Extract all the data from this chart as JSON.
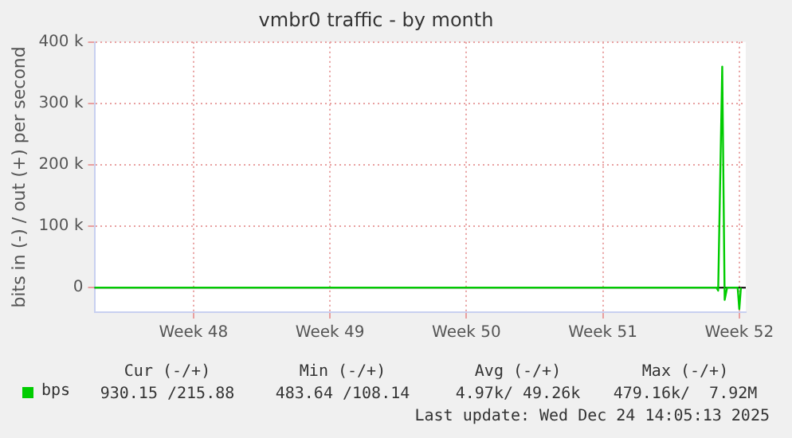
{
  "chart_data": {
    "type": "line",
    "title": "vmbr0 traffic - by month",
    "ylabel": "bits in (-) / out (+) per second",
    "x": [
      "2025-11-21T10:00",
      "2025-12-23T08:00",
      "2025-12-23T10:00",
      "2025-12-23T15:00",
      "2025-12-23T18:00",
      "2025-12-23T21:00",
      "2025-12-24T10:00",
      "2025-12-24T12:00",
      "2025-12-24T14:00"
    ],
    "series": [
      {
        "name": "bps",
        "color": "#00cc00",
        "values": [
          0,
          0,
          -5000,
          360000,
          -20000,
          0,
          0,
          -35000,
          0
        ]
      }
    ],
    "xlim": [
      "2025-11-21T10:00",
      "2025-12-24T20:00"
    ],
    "xticks": [
      {
        "value": "2025-11-26T12:00",
        "label": "Week 48"
      },
      {
        "value": "2025-12-03T12:00",
        "label": "Week 49"
      },
      {
        "value": "2025-12-10T12:00",
        "label": "Week 50"
      },
      {
        "value": "2025-12-17T12:00",
        "label": "Week 51"
      },
      {
        "value": "2025-12-24T12:00",
        "label": "Week 52"
      }
    ],
    "ylim": [
      -40000,
      400000
    ],
    "yticks": [
      {
        "value": 0,
        "label": "0"
      },
      {
        "value": 100000,
        "label": "100 k"
      },
      {
        "value": 200000,
        "label": "200 k"
      },
      {
        "value": 300000,
        "label": "300 k"
      },
      {
        "value": 400000,
        "label": "400 k"
      }
    ],
    "ref_lines": [
      {
        "axis": "y",
        "value": 0,
        "color": "#000000"
      }
    ],
    "grid": true,
    "legend": "bottom",
    "marker": "none",
    "line_style": "solid",
    "annotations": [
      "Cur (-/+)",
      "Min (-/+)",
      "Avg (-/+)",
      "Max (-/+)",
      "930.15 /215.88",
      "483.64 /108.14",
      "4.97k/ 49.26k",
      "479.16k/  7.92M",
      "Last update: Wed Dec 24 14:05:13 2025"
    ]
  }
}
